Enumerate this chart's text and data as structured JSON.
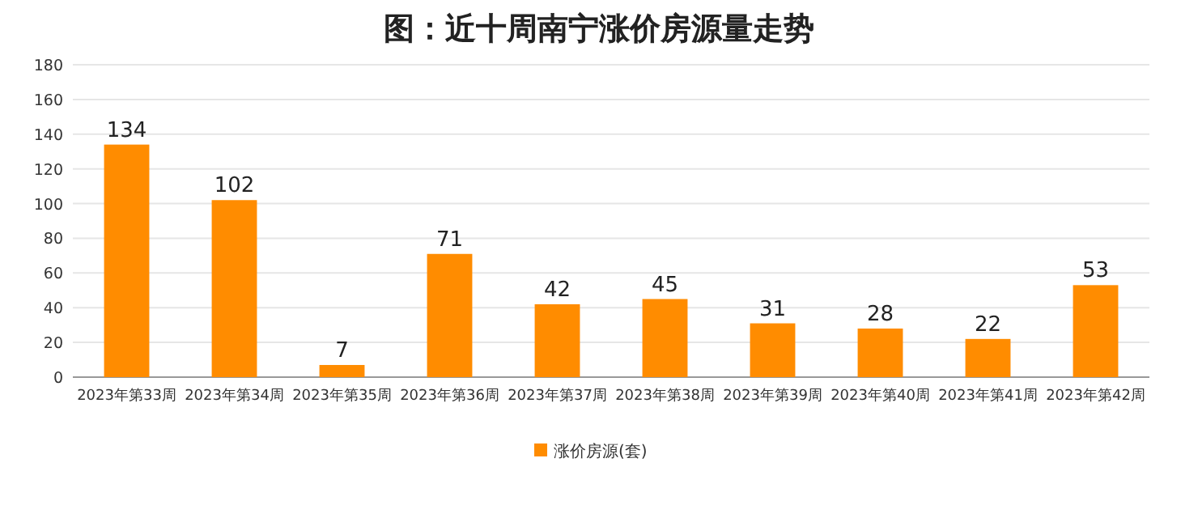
{
  "chart_data": {
    "type": "bar",
    "title": "图：近十周南宁涨价房源量走势",
    "categories": [
      "2023年第33周",
      "2023年第34周",
      "2023年第35周",
      "2023年第36周",
      "2023年第37周",
      "2023年第38周",
      "2023年第39周",
      "2023年第40周",
      "2023年第41周",
      "2023年第42周"
    ],
    "series": [
      {
        "name": "涨价房源(套)",
        "color": "#ff8c00",
        "values": [
          134,
          102,
          7,
          71,
          42,
          45,
          31,
          28,
          22,
          53
        ]
      }
    ],
    "ylim": [
      0,
      180
    ],
    "yticks": [
      0,
      20,
      40,
      60,
      80,
      100,
      120,
      140,
      160,
      180
    ],
    "grid": "y",
    "legend": "bottom",
    "data_labels": true
  }
}
